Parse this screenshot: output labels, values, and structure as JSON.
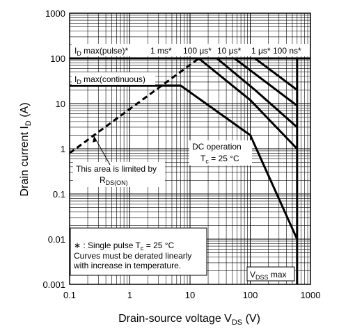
{
  "chart_data": {
    "type": "line",
    "title": "",
    "xlabel": "Drain-source voltage  V",
    "xlabel_sub": "DS",
    "xlabel_unit": "(V)",
    "ylabel": "Drain current  I",
    "ylabel_sub": "D",
    "ylabel_unit": "(A)",
    "xscale": "log",
    "yscale": "log",
    "xlim": [
      0.1,
      1000
    ],
    "ylim": [
      0.001,
      1000
    ],
    "grid": true,
    "x_ticks": [
      {
        "v": 0.1,
        "label": "0.1"
      },
      {
        "v": 1,
        "label": "1"
      },
      {
        "v": 10,
        "label": "10"
      },
      {
        "v": 100,
        "label": "100"
      },
      {
        "v": 1000,
        "label": "1000"
      }
    ],
    "y_ticks": [
      {
        "v": 0.001,
        "label": "0.001"
      },
      {
        "v": 0.01,
        "label": "0.01"
      },
      {
        "v": 0.1,
        "label": "0.1"
      },
      {
        "v": 1,
        "label": "1"
      },
      {
        "v": 10,
        "label": "10"
      },
      {
        "v": 100,
        "label": "100"
      },
      {
        "v": 1000,
        "label": "1000"
      }
    ],
    "series": [
      {
        "key": "id-pulse",
        "style": "solid",
        "points": [
          [
            0.1,
            100
          ],
          [
            1000,
            100
          ]
        ]
      },
      {
        "key": "id-continuous",
        "style": "solid",
        "points": [
          [
            0.1,
            25
          ],
          [
            7,
            25
          ]
        ]
      },
      {
        "key": "rds-on-limit",
        "style": "dashed",
        "points": [
          [
            0.1,
            0.8
          ],
          [
            14,
            100
          ]
        ]
      },
      {
        "key": "1ms",
        "style": "solid",
        "points": [
          [
            14,
            100
          ],
          [
            100,
            12
          ],
          [
            600,
            1
          ]
        ]
      },
      {
        "key": "100us",
        "style": "solid",
        "points": [
          [
            28,
            100
          ],
          [
            120,
            20
          ],
          [
            600,
            3
          ]
        ]
      },
      {
        "key": "10us",
        "style": "solid",
        "points": [
          [
            55,
            100
          ],
          [
            600,
            9
          ]
        ]
      },
      {
        "key": "1us",
        "style": "solid",
        "points": [
          [
            120,
            100
          ],
          [
            600,
            20
          ]
        ]
      },
      {
        "key": "dc",
        "style": "solid",
        "points": [
          [
            0.1,
            25
          ],
          [
            7,
            25
          ],
          [
            100,
            2
          ],
          [
            600,
            0.01
          ]
        ]
      },
      {
        "key": "vdss-max",
        "style": "solid",
        "points": [
          [
            600,
            0.001
          ],
          [
            600,
            100
          ]
        ]
      }
    ],
    "annotations": {
      "id_pulse_I": "I",
      "id_pulse_sub": "D",
      "id_pulse_rest": " max(pulse)*",
      "id_cont_I": "I",
      "id_cont_sub": "D",
      "id_cont_rest": " max(continuous)",
      "label_1ms": "1 ms*",
      "label_100us": "100 μs*",
      "label_10us": "10 μs*",
      "label_1us": "1 μs*",
      "label_100ns": "100 ns*",
      "dc_line1": "DC operation",
      "dc_tc": "T",
      "dc_tc_sub": "c",
      "dc_tc_rest": " = 25 °C",
      "area_line1": "This area is limited by",
      "area_r": "R",
      "area_r_sub": "DS(ON)",
      "note_line1_pre": "∗ : Single pulse  T",
      "note_line1_sub": "c",
      "note_line1_post": " = 25 °C",
      "note_line2": "Curves must be derated linearly",
      "note_line3": "with increase in temperature.",
      "vdss_V": "V",
      "vdss_sub": "DSS",
      "vdss_rest": " max"
    }
  }
}
